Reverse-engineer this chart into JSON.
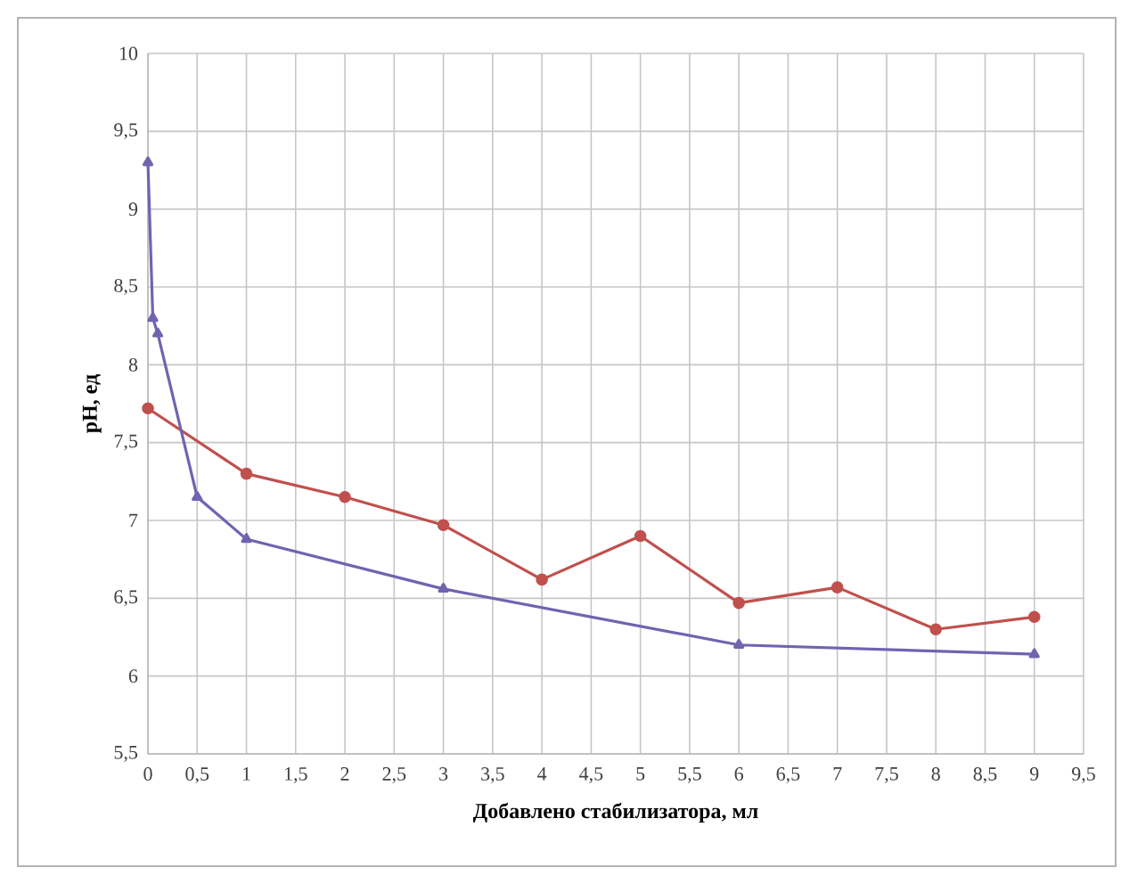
{
  "chart_data": {
    "type": "line",
    "xlabel": "Добавлено стабилизатора, мл",
    "ylabel": "pH, ед",
    "xlim": [
      0,
      9.5
    ],
    "ylim": [
      5.5,
      10
    ],
    "xticks": [
      0,
      {
        "value": 0.5,
        "label": "0,5"
      },
      1,
      {
        "value": 1.5,
        "label": "1,5"
      },
      2,
      {
        "value": 2.5,
        "label": "2,5"
      },
      3,
      {
        "value": 3.5,
        "label": "3,5"
      },
      4,
      {
        "value": 4.5,
        "label": "4,5"
      },
      5,
      {
        "value": 5.5,
        "label": "5,5"
      },
      6,
      {
        "value": 6.5,
        "label": "6,5"
      },
      7,
      {
        "value": 7.5,
        "label": "7,5"
      },
      8,
      {
        "value": 8.5,
        "label": "8,5"
      },
      9,
      {
        "value": 9.5,
        "label": "9,5"
      }
    ],
    "yticks": [
      {
        "value": 5.5,
        "label": "5,5"
      },
      6,
      {
        "value": 6.5,
        "label": "6,5"
      },
      7,
      {
        "value": 7.5,
        "label": "7,5"
      },
      8,
      {
        "value": 8.5,
        "label": "8,5"
      },
      9,
      {
        "value": 9.5,
        "label": "9,5"
      },
      10
    ],
    "grid": true,
    "series": [
      {
        "color": "#c0504d",
        "marker": "circle",
        "x": [
          0,
          1,
          2,
          3,
          4,
          5,
          6,
          7,
          8,
          9
        ],
        "values": [
          7.72,
          7.3,
          7.15,
          6.97,
          6.62,
          6.9,
          6.47,
          6.57,
          6.3,
          6.38
        ]
      },
      {
        "color": "#6f64b0",
        "marker": "triangle",
        "x": [
          0,
          0.05,
          0.1,
          0.5,
          1,
          3,
          6,
          9
        ],
        "values": [
          9.3,
          8.3,
          8.2,
          7.15,
          6.88,
          6.56,
          6.2,
          6.14
        ]
      }
    ]
  }
}
